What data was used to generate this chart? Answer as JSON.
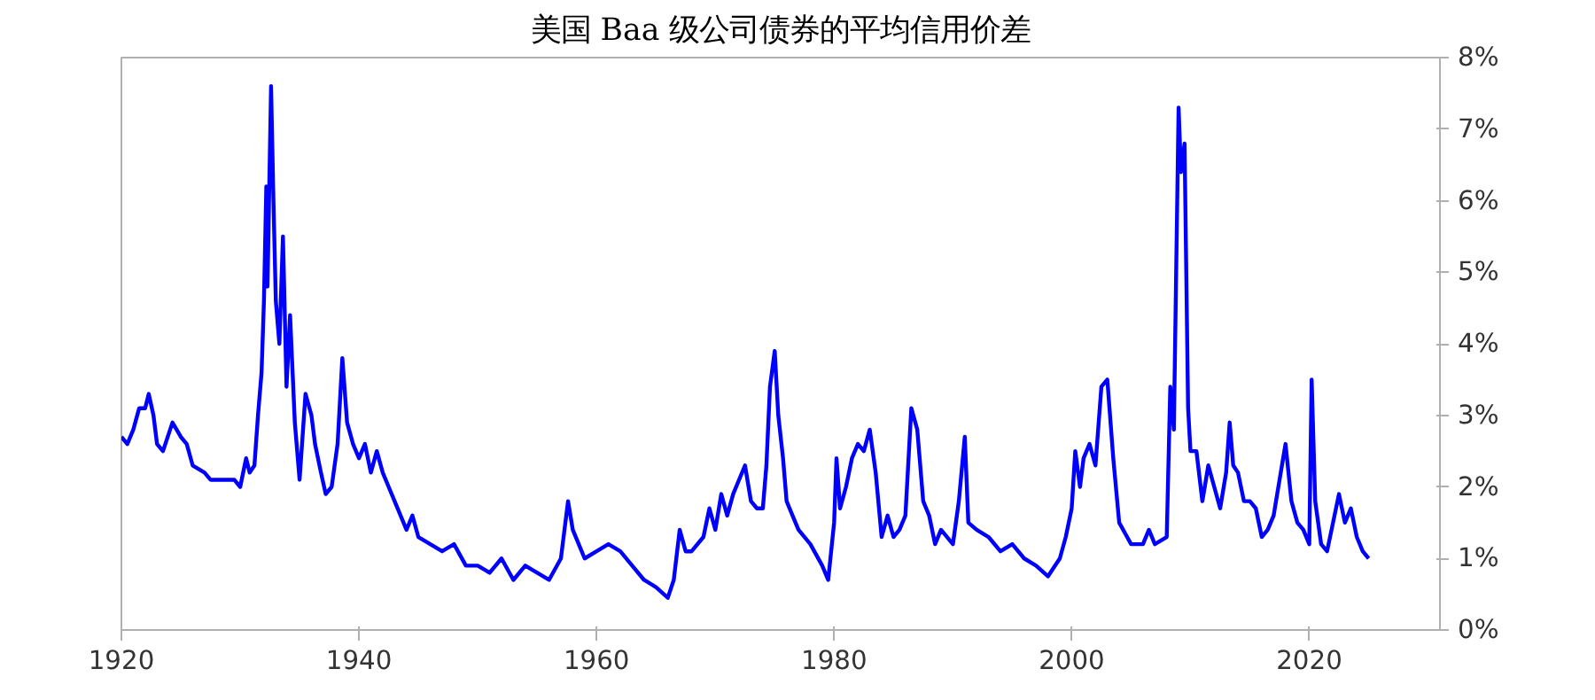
{
  "chart_data": {
    "type": "line",
    "title": "美国 Baa 级公司债券的平均信用价差",
    "x": [
      1920,
      1920.5,
      1921,
      1921.5,
      1922,
      1922.3,
      1922.7,
      1923,
      1923.5,
      1924.3,
      1925,
      1925.5,
      1926,
      1927,
      1927.5,
      1928.5,
      1929.5,
      1930,
      1930.5,
      1930.8,
      1931.2,
      1931.5,
      1931.8,
      1932,
      1932.2,
      1932.3,
      1932.6,
      1932.8,
      1933,
      1933.3,
      1933.6,
      1933.9,
      1934.2,
      1934.6,
      1935,
      1935.5,
      1936,
      1936.3,
      1936.8,
      1937.2,
      1937.7,
      1938.2,
      1938.6,
      1939,
      1939.5,
      1940,
      1940.5,
      1941,
      1941.5,
      1942,
      1942.5,
      1943,
      1944,
      1944.5,
      1945,
      1946,
      1947,
      1948,
      1949,
      1950,
      1951,
      1952,
      1953,
      1954,
      1955,
      1956,
      1957,
      1957.6,
      1958,
      1958.5,
      1959,
      1960,
      1961,
      1962,
      1963,
      1964,
      1965,
      1966,
      1966.5,
      1967,
      1967.5,
      1968,
      1969,
      1969.5,
      1970,
      1970.5,
      1971,
      1971.5,
      1972.5,
      1973,
      1973.5,
      1974,
      1974.3,
      1974.6,
      1975,
      1975.3,
      1975.7,
      1976,
      1976.5,
      1977,
      1978,
      1979,
      1979.5,
      1980,
      1980.2,
      1980.5,
      1981,
      1981.5,
      1982,
      1982.5,
      1983,
      1983.5,
      1984,
      1984.5,
      1985,
      1985.5,
      1986,
      1986.5,
      1987,
      1987.5,
      1988,
      1988.5,
      1989,
      1990,
      1990.5,
      1991,
      1991.3,
      1992,
      1993,
      1994,
      1995,
      1996,
      1997,
      1998,
      1999,
      1999.5,
      2000,
      2000.3,
      2000.7,
      2001,
      2001.5,
      2002,
      2002.5,
      2003,
      2003.5,
      2004,
      2005,
      2006,
      2006.5,
      2007,
      2008,
      2008.3,
      2008.6,
      2009,
      2009.2,
      2009.5,
      2009.8,
      2010,
      2010.5,
      2011,
      2011.5,
      2012,
      2012.5,
      2013,
      2013.3,
      2013.6,
      2014,
      2014.5,
      2015,
      2015.5,
      2016,
      2016.5,
      2017,
      2017.5,
      2018,
      2018.5,
      2019,
      2019.5,
      2020,
      2020.2,
      2020.5,
      2021,
      2021.5,
      2022,
      2022.5,
      2023,
      2023.5,
      2024,
      2024.5,
      2025
    ],
    "series": [
      {
        "color": "#0000ff",
        "values": [
          2.7,
          2.6,
          2.8,
          3.1,
          3.1,
          3.3,
          3.0,
          2.6,
          2.5,
          2.9,
          2.7,
          2.6,
          2.3,
          2.2,
          2.1,
          2.1,
          2.1,
          2.0,
          2.4,
          2.2,
          2.3,
          3.0,
          3.6,
          4.6,
          6.2,
          4.8,
          7.6,
          6.0,
          4.6,
          4.0,
          5.5,
          3.4,
          4.4,
          2.9,
          2.1,
          3.3,
          3.0,
          2.6,
          2.2,
          1.9,
          2.0,
          2.6,
          3.8,
          2.9,
          2.6,
          2.4,
          2.6,
          2.2,
          2.5,
          2.2,
          2.0,
          1.8,
          1.4,
          1.6,
          1.3,
          1.2,
          1.1,
          1.2,
          0.9,
          0.9,
          0.8,
          1.0,
          0.7,
          0.9,
          0.8,
          0.7,
          1.0,
          1.8,
          1.4,
          1.2,
          1.0,
          1.1,
          1.2,
          1.1,
          0.9,
          0.7,
          0.6,
          0.45,
          0.7,
          1.4,
          1.1,
          1.1,
          1.3,
          1.7,
          1.4,
          1.9,
          1.6,
          1.9,
          2.3,
          1.8,
          1.7,
          1.7,
          2.3,
          3.4,
          3.9,
          3.0,
          2.4,
          1.8,
          1.6,
          1.4,
          1.2,
          0.9,
          0.7,
          1.5,
          2.4,
          1.7,
          2.0,
          2.4,
          2.6,
          2.5,
          2.8,
          2.2,
          1.3,
          1.6,
          1.3,
          1.4,
          1.6,
          3.1,
          2.8,
          1.8,
          1.6,
          1.2,
          1.4,
          1.2,
          1.8,
          2.7,
          1.5,
          1.4,
          1.3,
          1.1,
          1.2,
          1.0,
          0.9,
          0.75,
          1.0,
          1.3,
          1.7,
          2.5,
          2.0,
          2.4,
          2.6,
          2.3,
          3.4,
          3.5,
          2.4,
          1.5,
          1.2,
          1.2,
          1.4,
          1.2,
          1.3,
          3.4,
          2.8,
          7.3,
          6.4,
          6.8,
          3.1,
          2.5,
          2.5,
          1.8,
          2.3,
          2.0,
          1.7,
          2.2,
          2.9,
          2.3,
          2.2,
          1.8,
          1.8,
          1.7,
          1.3,
          1.4,
          1.6,
          2.1,
          2.6,
          1.8,
          1.5,
          1.4,
          1.2,
          3.5,
          1.8,
          1.2,
          1.1,
          1.5,
          1.9,
          1.5,
          1.7,
          1.3,
          1.1,
          1.0
        ]
      }
    ],
    "xlim": [
      1920,
      2031
    ],
    "xticks": [
      1920,
      1940,
      1960,
      1980,
      2000,
      2020
    ],
    "ylim": [
      0,
      8
    ],
    "yticks": [
      {
        "value": 0,
        "label": "0%"
      },
      {
        "value": 1,
        "label": "1%"
      },
      {
        "value": 2,
        "label": "2%"
      },
      {
        "value": 3,
        "label": "3%"
      },
      {
        "value": 4,
        "label": "4%"
      },
      {
        "value": 5,
        "label": "5%"
      },
      {
        "value": 6,
        "label": "6%"
      },
      {
        "value": 7,
        "label": "7%"
      },
      {
        "value": 8,
        "label": "8%"
      }
    ],
    "grid": false,
    "marker": "none",
    "line_style": "solid"
  }
}
